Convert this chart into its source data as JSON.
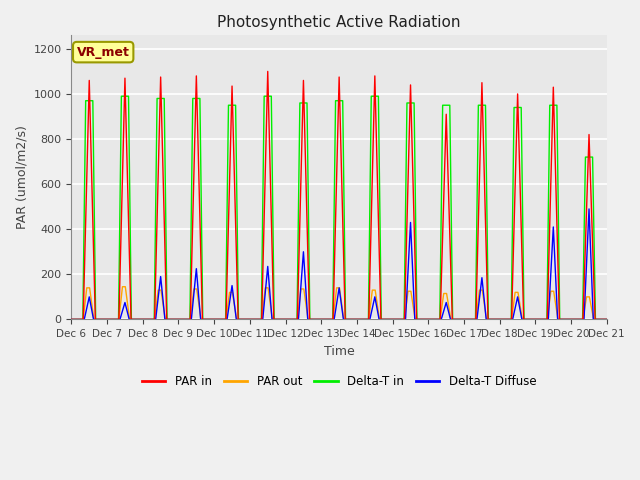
{
  "title": "Photosynthetic Active Radiation",
  "ylabel": "PAR (umol/m2/s)",
  "xlabel": "Time",
  "annotation": "VR_met",
  "xlim_days": [
    6,
    21
  ],
  "ylim": [
    0,
    1260
  ],
  "yticks": [
    0,
    200,
    400,
    600,
    800,
    1000,
    1200
  ],
  "xtick_labels": [
    "Dec 6",
    "Dec 7",
    "Dec 8",
    "Dec 9",
    "Dec 10",
    "Dec 11",
    "Dec 12",
    "Dec 13",
    "Dec 14",
    "Dec 15",
    "Dec 16",
    "Dec 17",
    "Dec 18",
    "Dec 19",
    "Dec 20",
    "Dec 21"
  ],
  "colors": {
    "PAR_in": "#FF0000",
    "PAR_out": "#FFA500",
    "Delta_T_in": "#00EE00",
    "Delta_T_Diffuse": "#0000FF"
  },
  "legend_labels": [
    "PAR in",
    "PAR out",
    "Delta-T in",
    "Delta-T Diffuse"
  ],
  "background_color": "#E8E8E8",
  "fig_background": "#F0F0F0",
  "grid_color": "#FFFFFF",
  "annotation_facecolor": "#FFFF99",
  "annotation_edgecolor": "#999900",
  "daily_peaks": {
    "PAR_in": [
      1060,
      1070,
      1075,
      1080,
      1035,
      1100,
      1060,
      1075,
      1080,
      1040,
      910,
      1050,
      1000,
      1030,
      820
    ],
    "PAR_out": [
      140,
      145,
      130,
      135,
      120,
      140,
      135,
      140,
      130,
      125,
      115,
      130,
      120,
      125,
      100
    ],
    "Delta_T_in": [
      970,
      990,
      980,
      980,
      950,
      990,
      960,
      970,
      990,
      960,
      950,
      950,
      940,
      950,
      720
    ],
    "Delta_T_Diff": [
      100,
      75,
      190,
      225,
      150,
      235,
      300,
      140,
      100,
      430,
      75,
      185,
      100,
      410,
      490
    ]
  },
  "n_days": 15,
  "start_day": 6
}
